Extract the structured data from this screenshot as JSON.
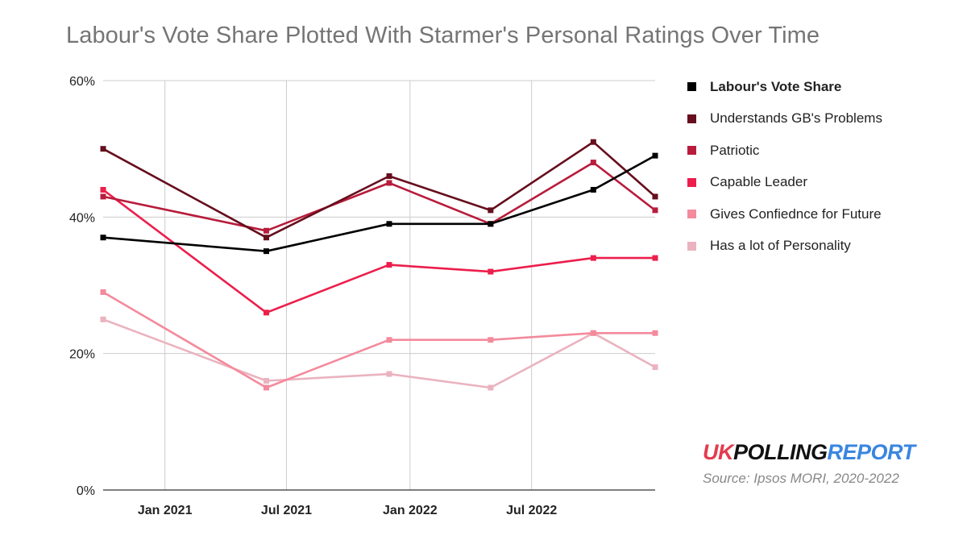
{
  "chart_data": {
    "type": "line",
    "title": "Labour's Vote Share Plotted With Starmer's Personal Ratings Over Time",
    "xlabel": "",
    "ylabel": "",
    "x": [
      "2020-10",
      "2021-06",
      "2021-12",
      "2022-05",
      "2022-10",
      "2023-01"
    ],
    "x_ticks": [
      {
        "date": "2021-01",
        "label": "Jan 2021"
      },
      {
        "date": "2021-07",
        "label": "Jul 2021"
      },
      {
        "date": "2022-01",
        "label": "Jan 2022"
      },
      {
        "date": "2022-07",
        "label": "Jul 2022"
      }
    ],
    "ylim": [
      0,
      60
    ],
    "y_ticks": [
      {
        "value": 0,
        "label": "0%"
      },
      {
        "value": 20,
        "label": "20%"
      },
      {
        "value": 40,
        "label": "40%"
      },
      {
        "value": 60,
        "label": "60%"
      }
    ],
    "grid": true,
    "legend_position": "right",
    "series": [
      {
        "name": "Labour's Vote Share",
        "color": "#000000",
        "values": [
          37,
          35,
          39,
          39,
          44,
          49
        ]
      },
      {
        "name": "Understands GB's Problems",
        "color": "#660e1d",
        "values": [
          50,
          37,
          46,
          41,
          51,
          43
        ]
      },
      {
        "name": "Patriotic",
        "color": "#b81c3c",
        "values": [
          43,
          38,
          45,
          39,
          48,
          41
        ]
      },
      {
        "name": "Capable Leader",
        "color": "#ec1e4b",
        "values": [
          44,
          26,
          33,
          32,
          34,
          34
        ]
      },
      {
        "name": "Gives Confiednce for Future",
        "color": "#f48a9c",
        "values": [
          29,
          15,
          22,
          22,
          23,
          23
        ]
      },
      {
        "name": "Has a lot of Personality",
        "color": "#eab3bf",
        "values": [
          25,
          16,
          17,
          15,
          23,
          18
        ]
      }
    ]
  },
  "branding": {
    "uk": "UK",
    "polling": "POLLING",
    "report": "REPORT",
    "source": "Source: Ipsos MORI, 2020-2022"
  }
}
